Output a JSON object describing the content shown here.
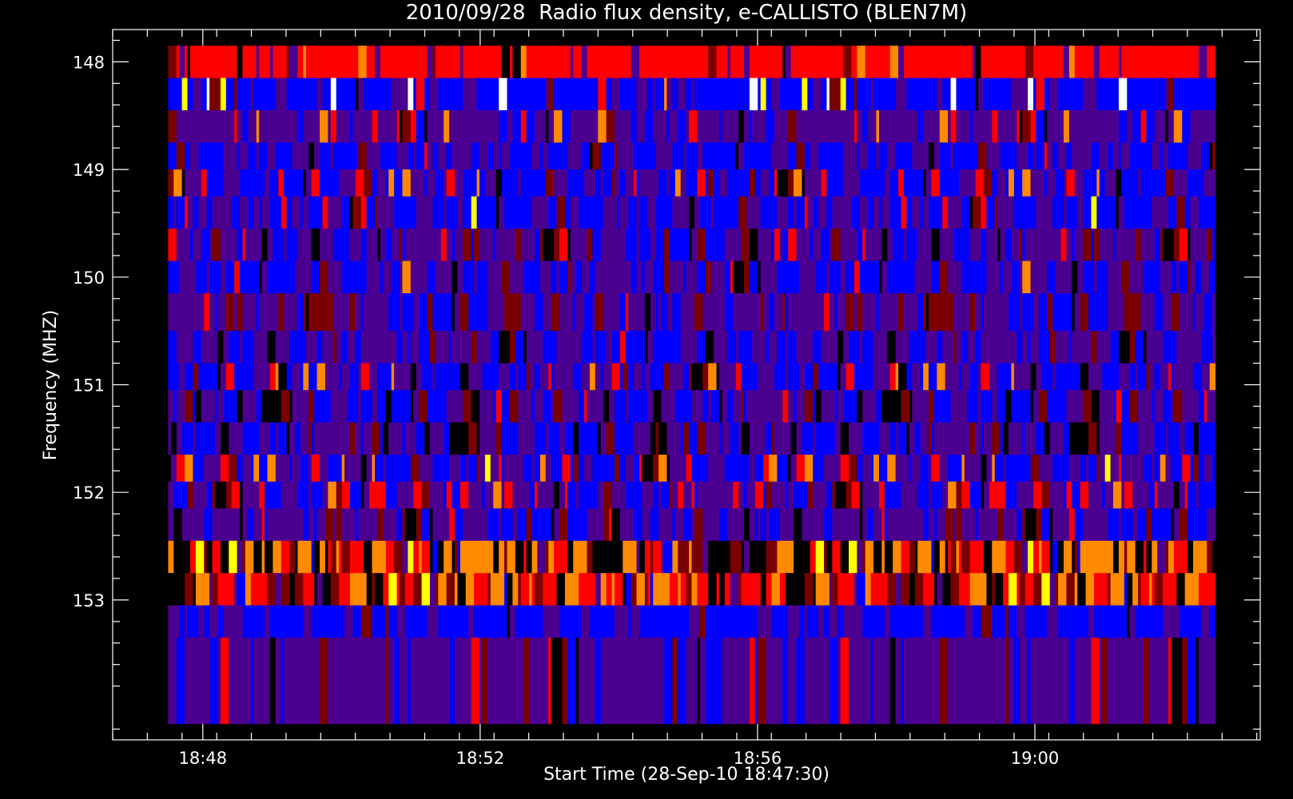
{
  "chart_data": {
    "type": "heatmap",
    "title": "2010/09/28  Radio flux density, e-CALLISTO (BLEN7M)",
    "xlabel": "Start Time (28-Sep-10 18:47:30)",
    "ylabel": "Frequency (MHZ)",
    "x_ticks": [
      "18:48",
      "18:52",
      "18:56",
      "19:00"
    ],
    "y_ticks": [
      "148",
      "149",
      "150",
      "151",
      "152",
      "153"
    ],
    "x_range_minutes_after_start": [
      -0.8,
      15.75
    ],
    "data_time_range_minutes_after_start": [
      0.0,
      15.1
    ],
    "y_range_mhz": [
      147.7,
      154.3
    ],
    "frequency_channels_mhz": [
      148.0,
      148.3,
      148.6,
      148.9,
      149.1,
      149.4,
      149.7,
      150.0,
      150.3,
      150.7,
      150.9,
      151.2,
      151.5,
      151.8,
      152.0,
      152.3,
      152.6,
      152.9,
      153.2,
      153.5
    ],
    "colormap": [
      "#000000",
      "#7a0000",
      "#ff0000",
      "#ff8a00",
      "#ffff00",
      "#ffffff",
      "#0000ff",
      "#4b0090"
    ],
    "grid": false
  }
}
